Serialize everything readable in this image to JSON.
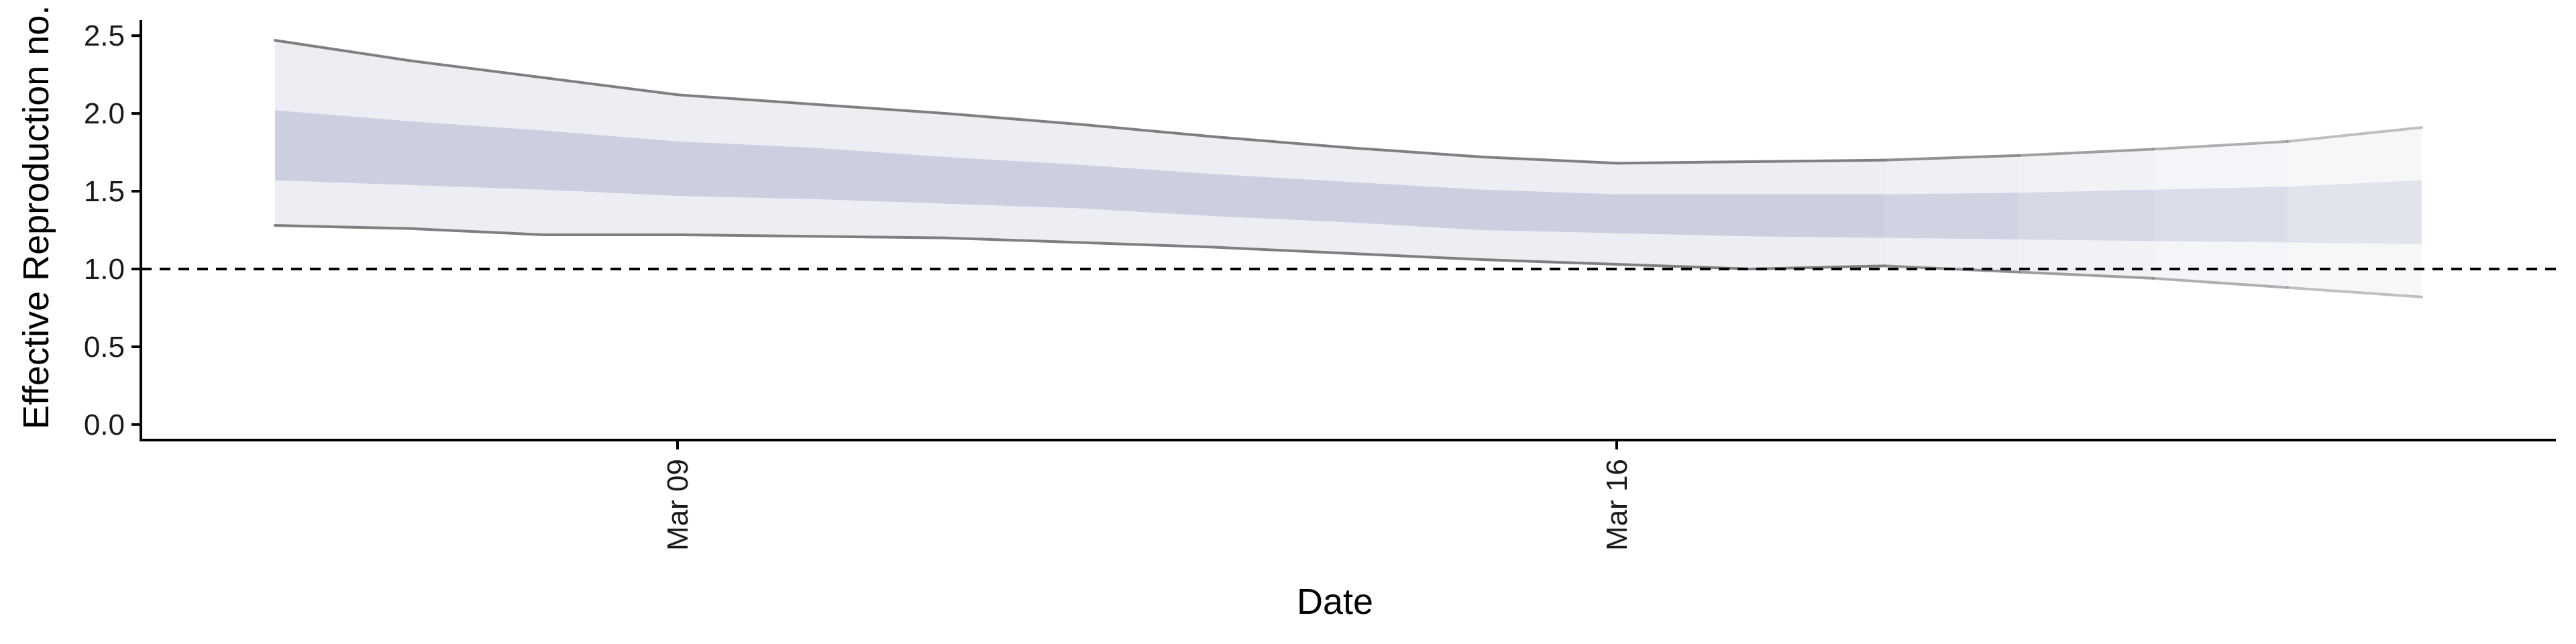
{
  "chart_data": {
    "type": "area",
    "title": "",
    "xlabel": "Date",
    "ylabel": "Effective Reproduction no.",
    "x_tick_labels": [
      "Mar 09",
      "Mar 16"
    ],
    "y_tick_labels": [
      "0.0",
      "0.5",
      "1.0",
      "1.5",
      "2.0",
      "2.5"
    ],
    "ylim": [
      -0.1,
      2.6
    ],
    "xlim": [
      "2020-03-05",
      "2020-03-23"
    ],
    "reference_line": {
      "y": 1.0,
      "style": "dashed"
    },
    "x": [
      "2020-03-06",
      "2020-03-07",
      "2020-03-08",
      "2020-03-09",
      "2020-03-10",
      "2020-03-11",
      "2020-03-12",
      "2020-03-13",
      "2020-03-14",
      "2020-03-15",
      "2020-03-16",
      "2020-03-17",
      "2020-03-18",
      "2020-03-19",
      "2020-03-20",
      "2020-03-21",
      "2020-03-22"
    ],
    "series": [
      {
        "role": "outer_interval",
        "lower": [
          1.28,
          1.26,
          1.22,
          1.22,
          1.21,
          1.2,
          1.17,
          1.14,
          1.1,
          1.06,
          1.03,
          1.0,
          1.02,
          0.98,
          0.94,
          0.88,
          0.82
        ],
        "upper": [
          2.47,
          2.34,
          2.23,
          2.12,
          2.06,
          2.0,
          1.93,
          1.85,
          1.78,
          1.72,
          1.68,
          1.69,
          1.7,
          1.73,
          1.77,
          1.82,
          1.91
        ]
      },
      {
        "role": "inner_interval",
        "lower": [
          1.57,
          1.54,
          1.51,
          1.47,
          1.45,
          1.42,
          1.39,
          1.34,
          1.3,
          1.25,
          1.23,
          1.21,
          1.2,
          1.19,
          1.18,
          1.17,
          1.16
        ],
        "upper": [
          2.02,
          1.95,
          1.89,
          1.82,
          1.78,
          1.72,
          1.67,
          1.61,
          1.56,
          1.51,
          1.48,
          1.48,
          1.48,
          1.49,
          1.51,
          1.53,
          1.57
        ]
      }
    ],
    "colors": {
      "outer_band": "#eceef3",
      "inner_band": "#cbcfdf",
      "interval_line": "#7f7f7f",
      "reference_line": "#000000",
      "axis": "#000000"
    }
  }
}
